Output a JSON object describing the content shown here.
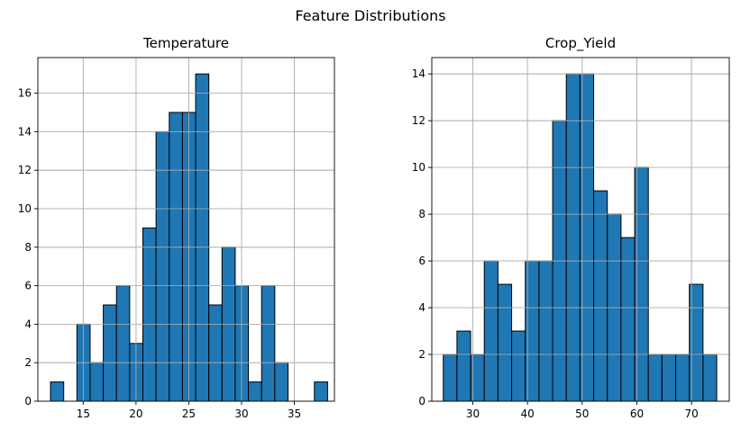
{
  "suptitle": "Feature Distributions",
  "colors": {
    "bar": "#1f77b4",
    "edge": "#000000",
    "grid": "#b0b0b0",
    "axis": "#000000"
  },
  "chart_data": [
    {
      "type": "bar",
      "title": "Temperature",
      "xlabel": "",
      "ylabel": "",
      "xlim": [
        10.7,
        38.8
      ],
      "ylim": [
        0,
        17.85
      ],
      "xticks": [
        15,
        20,
        25,
        30,
        35
      ],
      "yticks": [
        0,
        2,
        4,
        6,
        8,
        10,
        12,
        14,
        16
      ],
      "grid": true,
      "bins": [
        {
          "x0": 11.9,
          "x1": 13.15,
          "count": 1
        },
        {
          "x0": 13.15,
          "x1": 14.4,
          "count": 0
        },
        {
          "x0": 14.4,
          "x1": 15.65,
          "count": 4
        },
        {
          "x0": 15.65,
          "x1": 16.9,
          "count": 2
        },
        {
          "x0": 16.9,
          "x1": 18.15,
          "count": 5
        },
        {
          "x0": 18.15,
          "x1": 19.4,
          "count": 6
        },
        {
          "x0": 19.4,
          "x1": 20.65,
          "count": 3
        },
        {
          "x0": 20.65,
          "x1": 21.9,
          "count": 9
        },
        {
          "x0": 21.9,
          "x1": 23.15,
          "count": 14
        },
        {
          "x0": 23.15,
          "x1": 24.4,
          "count": 15
        },
        {
          "x0": 24.4,
          "x1": 25.65,
          "count": 15
        },
        {
          "x0": 25.65,
          "x1": 26.9,
          "count": 17
        },
        {
          "x0": 26.9,
          "x1": 28.15,
          "count": 5
        },
        {
          "x0": 28.15,
          "x1": 29.4,
          "count": 8
        },
        {
          "x0": 29.4,
          "x1": 30.65,
          "count": 6
        },
        {
          "x0": 30.65,
          "x1": 31.9,
          "count": 1
        },
        {
          "x0": 31.9,
          "x1": 33.15,
          "count": 6
        },
        {
          "x0": 33.15,
          "x1": 34.4,
          "count": 2
        },
        {
          "x0": 34.4,
          "x1": 35.65,
          "count": 0
        },
        {
          "x0": 35.65,
          "x1": 36.9,
          "count": 0
        },
        {
          "x0": 36.9,
          "x1": 38.15,
          "count": 1
        }
      ]
    },
    {
      "type": "bar",
      "title": "Crop_Yield",
      "xlabel": "",
      "ylabel": "",
      "xlim": [
        22.5,
        76.9
      ],
      "ylim": [
        0,
        14.7
      ],
      "xticks": [
        30,
        40,
        50,
        60,
        70
      ],
      "yticks": [
        0,
        2,
        4,
        6,
        8,
        10,
        12,
        14
      ],
      "grid": true,
      "bins": [
        {
          "x0": 24.6,
          "x1": 27.1,
          "count": 2
        },
        {
          "x0": 27.1,
          "x1": 29.6,
          "count": 3
        },
        {
          "x0": 29.6,
          "x1": 32.1,
          "count": 2
        },
        {
          "x0": 32.1,
          "x1": 34.6,
          "count": 6
        },
        {
          "x0": 34.6,
          "x1": 37.1,
          "count": 5
        },
        {
          "x0": 37.1,
          "x1": 39.6,
          "count": 3
        },
        {
          "x0": 39.6,
          "x1": 42.1,
          "count": 6
        },
        {
          "x0": 42.1,
          "x1": 44.6,
          "count": 6
        },
        {
          "x0": 44.6,
          "x1": 47.1,
          "count": 12
        },
        {
          "x0": 47.1,
          "x1": 49.6,
          "count": 14
        },
        {
          "x0": 49.6,
          "x1": 52.1,
          "count": 14
        },
        {
          "x0": 52.1,
          "x1": 54.6,
          "count": 9
        },
        {
          "x0": 54.6,
          "x1": 57.1,
          "count": 8
        },
        {
          "x0": 57.1,
          "x1": 59.6,
          "count": 7
        },
        {
          "x0": 59.6,
          "x1": 62.1,
          "count": 10
        },
        {
          "x0": 62.1,
          "x1": 64.6,
          "count": 2
        },
        {
          "x0": 64.6,
          "x1": 67.1,
          "count": 2
        },
        {
          "x0": 67.1,
          "x1": 69.6,
          "count": 2
        },
        {
          "x0": 69.6,
          "x1": 72.1,
          "count": 5
        },
        {
          "x0": 72.1,
          "x1": 74.6,
          "count": 2
        }
      ]
    }
  ]
}
